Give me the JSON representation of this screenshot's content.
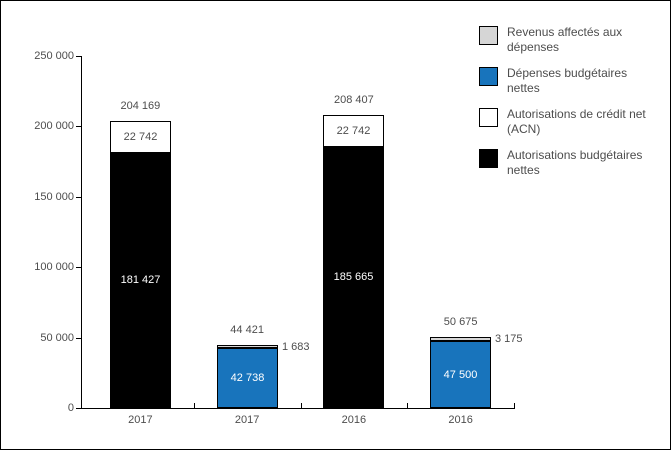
{
  "window": {
    "background": "#ffffff",
    "border_color": "#000000"
  },
  "chart_data": {
    "type": "bar",
    "stacked": true,
    "grid": false,
    "legend_position": "top-right",
    "xlabel": "",
    "ylabel": "",
    "ylim": [
      0,
      250000
    ],
    "y_ticks": [
      {
        "value": 0,
        "label": "0"
      },
      {
        "value": 50000,
        "label": "50 000"
      },
      {
        "value": 100000,
        "label": "100 000"
      },
      {
        "value": 150000,
        "label": "150 000"
      },
      {
        "value": 200000,
        "label": "200 000"
      },
      {
        "value": 250000,
        "label": "250 000"
      }
    ],
    "categories": [
      "2017",
      "2017",
      "2016",
      "2016"
    ],
    "bars": [
      {
        "category": "2017",
        "total": 204169,
        "total_label": "204 169",
        "segments": [
          {
            "series": "Autorisations budgétaires nettes",
            "value": 181427,
            "label": "181 427",
            "color": "#000000",
            "text_color": "#ffffff",
            "label_placement": "inside"
          },
          {
            "series": "Autorisations de crédit net (ACN)",
            "value": 22742,
            "label": "22 742",
            "color": "#ffffff",
            "text_color": "#4d4d4d",
            "label_placement": "inside"
          }
        ]
      },
      {
        "category": "2017",
        "total": 44421,
        "total_label": "44 421",
        "segments": [
          {
            "series": "Dépenses budgétaires nettes",
            "value": 42738,
            "label": "42 738",
            "color": "#1874bc",
            "text_color": "#ffffff",
            "label_placement": "inside"
          },
          {
            "series": "Revenus affectés aux dépenses",
            "value": 1683,
            "label": "1 683",
            "color": "#d6d6d6",
            "text_color": "#4d4d4d",
            "label_placement": "right"
          }
        ]
      },
      {
        "category": "2016",
        "total": 208407,
        "total_label": "208 407",
        "segments": [
          {
            "series": "Autorisations budgétaires nettes",
            "value": 185665,
            "label": "185 665",
            "color": "#000000",
            "text_color": "#ffffff",
            "label_placement": "inside"
          },
          {
            "series": "Autorisations de crédit net (ACN)",
            "value": 22742,
            "label": "22 742",
            "color": "#ffffff",
            "text_color": "#4d4d4d",
            "label_placement": "inside"
          }
        ]
      },
      {
        "category": "2016",
        "total": 50675,
        "total_label": "50 675",
        "segments": [
          {
            "series": "Dépenses budgétaires nettes",
            "value": 47500,
            "label": "47 500",
            "color": "#1874bc",
            "text_color": "#ffffff",
            "label_placement": "inside"
          },
          {
            "series": "Revenus affectés aux dépenses",
            "value": 3175,
            "label": "3 175",
            "color": "#d6d6d6",
            "text_color": "#4d4d4d",
            "label_placement": "right"
          }
        ]
      }
    ],
    "legend": [
      {
        "label": "Revenus affectés aux dépenses",
        "color": "#d6d6d6"
      },
      {
        "label": "Dépenses budgétaires nettes",
        "color": "#1874bc"
      },
      {
        "label": "Autorisations de crédit net (ACN)",
        "color": "#ffffff"
      },
      {
        "label": "Autorisations budgétaires nettes",
        "color": "#000000"
      }
    ]
  }
}
